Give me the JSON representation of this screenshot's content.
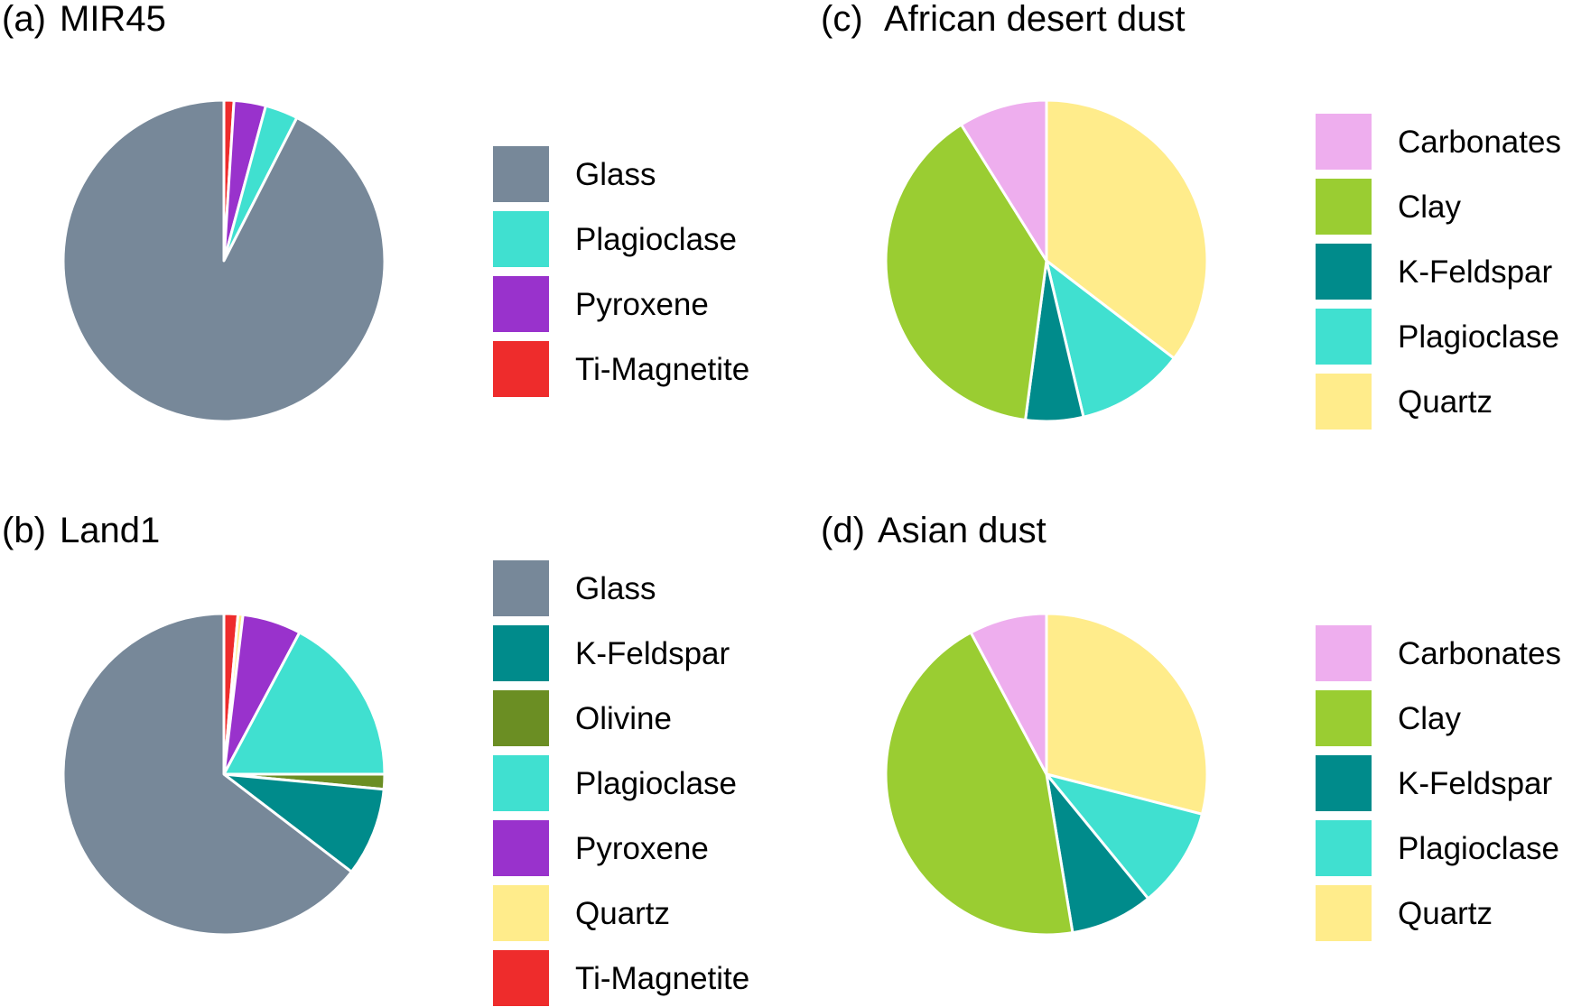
{
  "chart_data": [
    {
      "type": "pie",
      "panel": "(a)",
      "title": "MIR45",
      "legend": [
        "Glass",
        "Plagioclase",
        "Pyroxene",
        "Ti-Magnetite"
      ],
      "slices": [
        {
          "label": "Ti-Magnetite",
          "value": 1.0,
          "color": "#EE2C2C"
        },
        {
          "label": "Pyroxene",
          "value": 3.2,
          "color": "#9932CC"
        },
        {
          "label": "Plagioclase",
          "value": 3.3,
          "color": "#40E0D0"
        },
        {
          "label": "Glass",
          "value": 92.5,
          "color": "#778899"
        }
      ]
    },
    {
      "type": "pie",
      "panel": "(b)",
      "title": "Land1",
      "legend": [
        "Glass",
        "K-Feldspar",
        "Olivine",
        "Plagioclase",
        "Pyroxene",
        "Quartz",
        "Ti-Magnetite"
      ],
      "slices": [
        {
          "label": "Ti-Magnetite",
          "value": 1.4,
          "color": "#EE2C2C"
        },
        {
          "label": "Quartz",
          "value": 0.5,
          "color": "#FFEC8B"
        },
        {
          "label": "Pyroxene",
          "value": 5.9,
          "color": "#9932CC"
        },
        {
          "label": "Plagioclase",
          "value": 17.2,
          "color": "#40E0D0"
        },
        {
          "label": "Olivine",
          "value": 1.5,
          "color": "#6B8E23"
        },
        {
          "label": "K-Feldspar",
          "value": 8.9,
          "color": "#008B8B"
        },
        {
          "label": "Glass",
          "value": 64.6,
          "color": "#778899"
        }
      ]
    },
    {
      "type": "pie",
      "panel": "(c)",
      "title": "African desert dust",
      "legend": [
        "Carbonates",
        "Clay",
        "K-Feldspar",
        "Plagioclase",
        "Quartz"
      ],
      "slices": [
        {
          "label": "Quartz",
          "value": 35.4,
          "color": "#FFEC8B"
        },
        {
          "label": "Plagioclase",
          "value": 10.9,
          "color": "#40E0D0"
        },
        {
          "label": "K-Feldspar",
          "value": 5.8,
          "color": "#008B8B"
        },
        {
          "label": "Clay",
          "value": 39.0,
          "color": "#9ACD32"
        },
        {
          "label": "Carbonates",
          "value": 8.9,
          "color": "#EEAEEE"
        }
      ]
    },
    {
      "type": "pie",
      "panel": "(d)",
      "title": "Asian dust",
      "legend": [
        "Carbonates",
        "Clay",
        "K-Feldspar",
        "Plagioclase",
        "Quartz"
      ],
      "slices": [
        {
          "label": "Quartz",
          "value": 29.0,
          "color": "#FFEC8B"
        },
        {
          "label": "Plagioclase",
          "value": 10.1,
          "color": "#40E0D0"
        },
        {
          "label": "K-Feldspar",
          "value": 8.3,
          "color": "#008B8B"
        },
        {
          "label": "Clay",
          "value": 44.8,
          "color": "#9ACD32"
        },
        {
          "label": "Carbonates",
          "value": 7.8,
          "color": "#EEAEEE"
        }
      ]
    }
  ]
}
